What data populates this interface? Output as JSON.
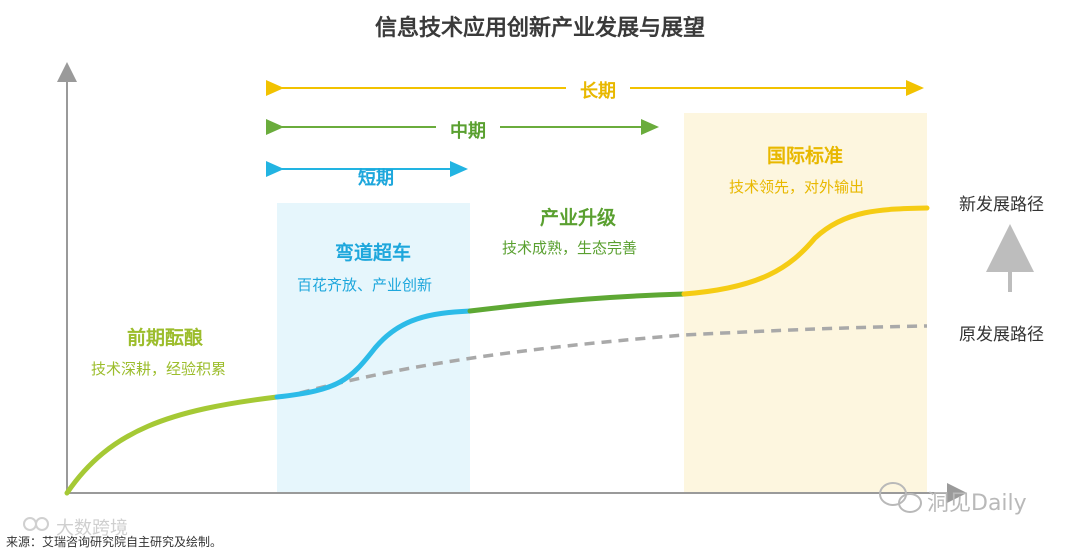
{
  "title": "信息技术应用创新产业发展与展望",
  "periods": {
    "long": {
      "label": "长期",
      "color": "#f2c200"
    },
    "mid": {
      "label": "中期",
      "color": "#6aac3c"
    },
    "short": {
      "label": "短期",
      "color": "#22b4e2"
    }
  },
  "phases": [
    {
      "title": "前期酝酿",
      "desc": "技术深耕，经验积累",
      "color": "#9cbd2c"
    },
    {
      "title": "弯道超车",
      "desc": "百花齐放、产业创新",
      "color": "#1ea7dc"
    },
    {
      "title": "产业升级",
      "desc": "技术成熟，生态完善",
      "color": "#5aa030"
    },
    {
      "title": "国际标准",
      "desc": "技术领先，对外输出",
      "color": "#e8b800"
    }
  ],
  "paths": {
    "new": "新发展路径",
    "old": "原发展路径"
  },
  "source": "来源：艾瑞咨询研究院自主研究及绘制。",
  "watermark_right": "洞见Daily",
  "watermark_left": "大数跨境",
  "colors": {
    "green_light": "#a5c935",
    "blue": "#2cbbe8",
    "green": "#5ea834",
    "yellow": "#f5cc14",
    "dashed_gray": "#a9a9a9",
    "axis": "#9a9a9a",
    "short_box": "#e6f6fc",
    "long_box": "#fdf6df"
  }
}
